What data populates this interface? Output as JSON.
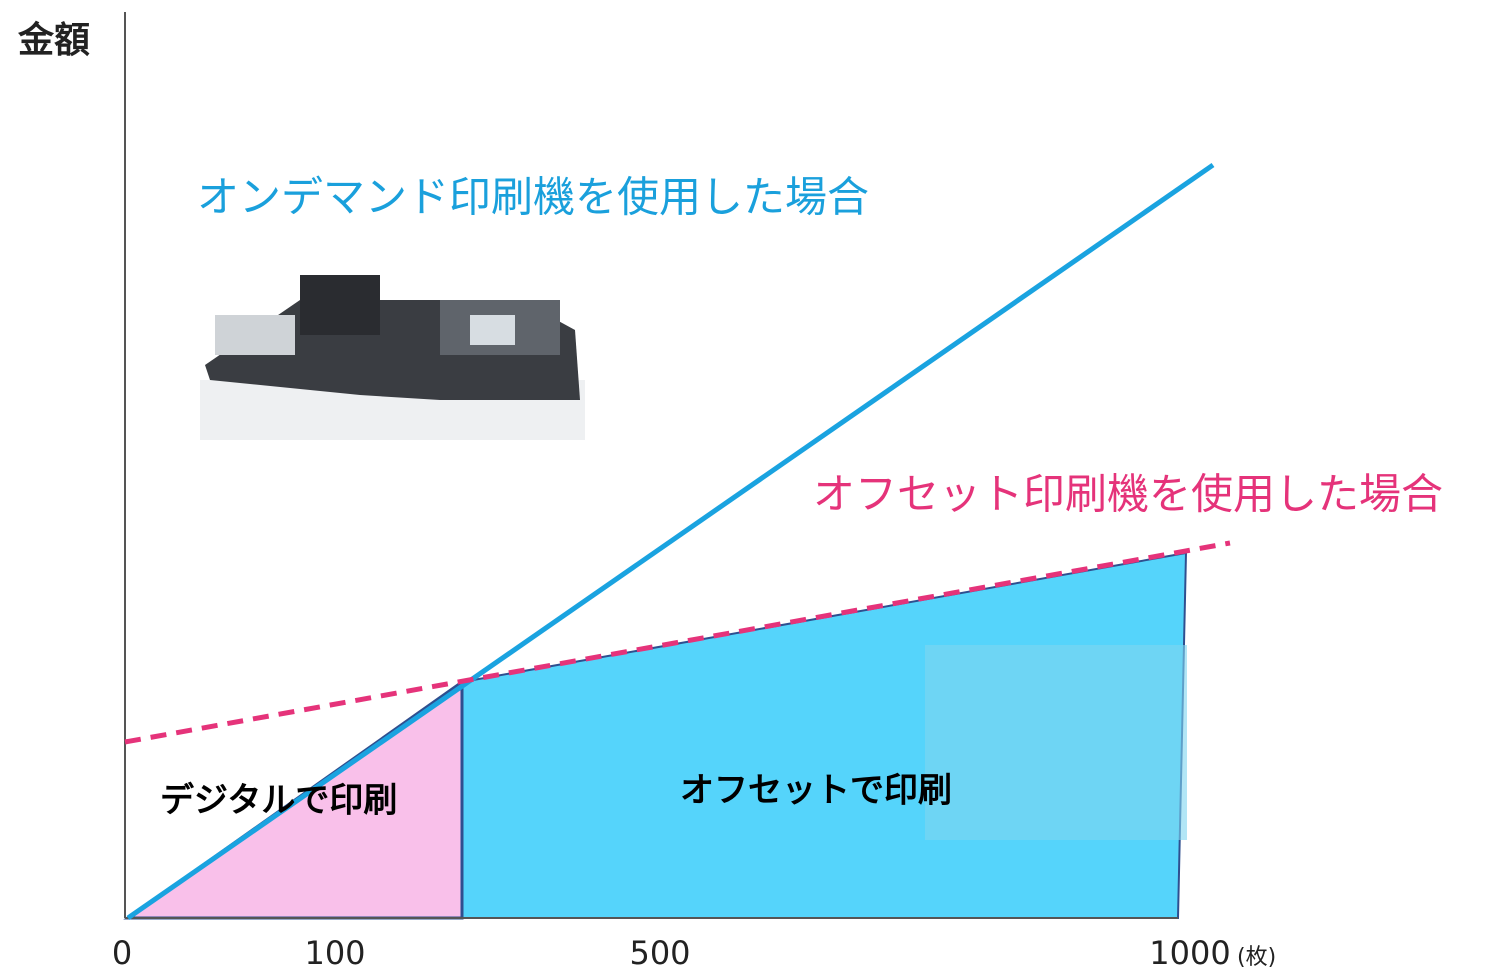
{
  "y_axis_label": "金額",
  "x_axis": {
    "ticks": [
      0,
      100,
      500,
      1000
    ],
    "unit": "(枚)"
  },
  "lines": [
    {
      "label": "オンデマンド印刷機を使用した場合"
    },
    {
      "label": "オフセット印刷機を使用した場合"
    }
  ],
  "regions": [
    {
      "label": "デジタルで印刷"
    },
    {
      "label": "オフセットで印刷"
    }
  ]
}
